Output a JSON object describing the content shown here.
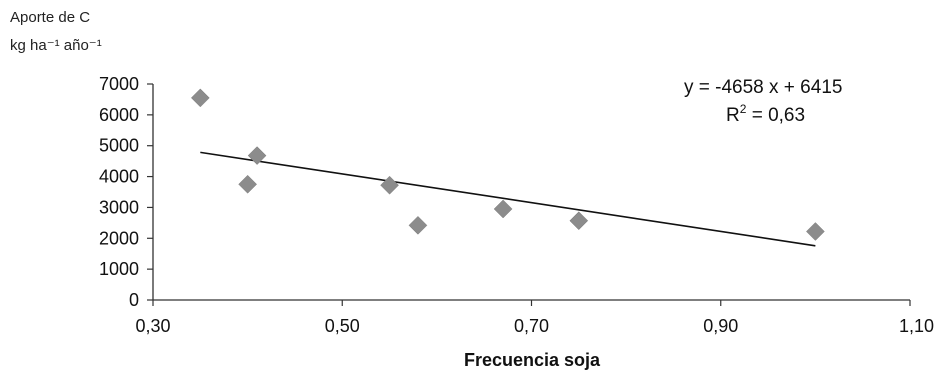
{
  "chart_data": {
    "type": "scatter",
    "ylabel_lines": [
      "Aporte de C",
      "kg ha⁻¹ año⁻¹"
    ],
    "xlabel": "Frecuencia soja",
    "xlim": [
      0.3,
      1.1
    ],
    "ylim": [
      0,
      7000
    ],
    "x_ticks": [
      "0,30",
      "0,50",
      "0,70",
      "0,90",
      "1,10"
    ],
    "y_ticks": [
      "0",
      "1000",
      "2000",
      "3000",
      "4000",
      "5000",
      "6000",
      "7000"
    ],
    "x_tick_values": [
      0.3,
      0.5,
      0.7,
      0.9,
      1.1
    ],
    "y_tick_values": [
      0,
      1000,
      2000,
      3000,
      4000,
      5000,
      6000,
      7000
    ],
    "points": [
      {
        "x": 0.35,
        "y": 6550
      },
      {
        "x": 0.4,
        "y": 3750
      },
      {
        "x": 0.41,
        "y": 4680
      },
      {
        "x": 0.55,
        "y": 3720
      },
      {
        "x": 0.58,
        "y": 2420
      },
      {
        "x": 0.67,
        "y": 2950
      },
      {
        "x": 0.75,
        "y": 2570
      },
      {
        "x": 1.0,
        "y": 2220
      }
    ],
    "trendline": {
      "slope": -4658,
      "intercept": 6415,
      "x_range": [
        0.35,
        1.0
      ]
    },
    "annotations": {
      "equation": "y = -4658 x + 6415",
      "r2_prefix": "R",
      "r2_sup": "2",
      "r2_value": " = 0,63"
    },
    "grid": false,
    "legend": "none",
    "marker": "diamond",
    "marker_color": "#8c8c8c"
  }
}
